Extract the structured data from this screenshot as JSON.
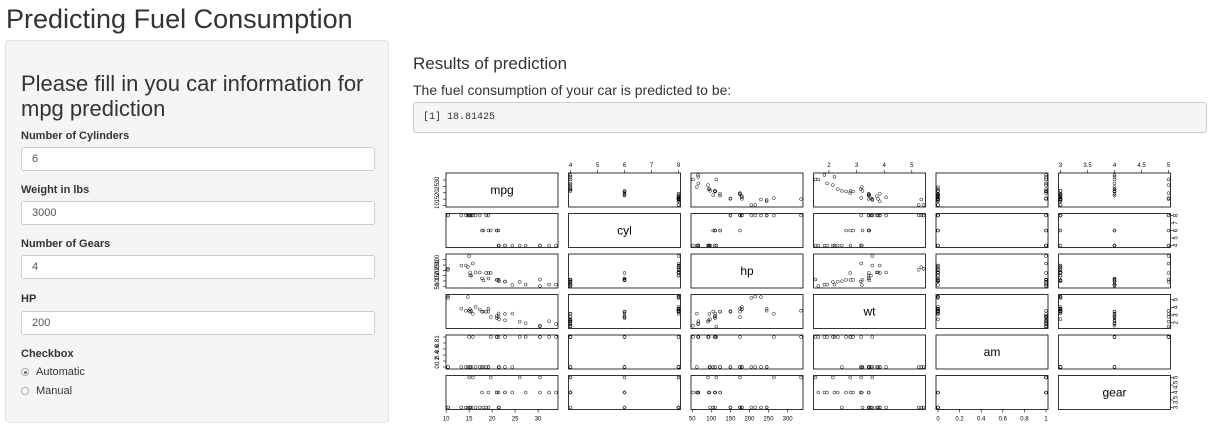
{
  "title": "Predicting Fuel Consumption",
  "sidebar": {
    "heading": "Please fill in you car information for mpg prediction",
    "fields": [
      {
        "label": "Number of Cylinders",
        "value": "6"
      },
      {
        "label": "Weight in lbs",
        "value": "3000"
      },
      {
        "label": "Number of Gears",
        "value": "4"
      },
      {
        "label": "HP",
        "value": "200"
      }
    ],
    "checkbox": {
      "label": "Checkbox",
      "options": [
        "Automatic",
        "Manual"
      ],
      "selected": "Automatic"
    }
  },
  "main": {
    "results_title": "Results of prediction",
    "results_subtitle": "The fuel consumption of your car is predicted to be:",
    "prediction": "[1] 18.81425"
  },
  "chart_data": {
    "type": "scatter",
    "variables": [
      "mpg",
      "cyl",
      "hp",
      "wt",
      "am",
      "gear"
    ],
    "ranges": {
      "mpg": [
        10.4,
        33.9
      ],
      "cyl": [
        4,
        8
      ],
      "hp": [
        52,
        335
      ],
      "wt": [
        1.513,
        5.424
      ],
      "am": [
        0,
        1
      ],
      "gear": [
        3,
        5
      ]
    },
    "ticks": {
      "mpg": [
        10,
        15,
        20,
        25,
        30
      ],
      "cyl": [
        4,
        5,
        6,
        7,
        8
      ],
      "hp": [
        50,
        100,
        150,
        200,
        250,
        300
      ],
      "wt": [
        2,
        3,
        4,
        5
      ],
      "am": [
        0.0,
        0.2,
        0.4,
        0.6,
        0.8,
        1.0
      ],
      "gear": [
        3.0,
        3.5,
        4.0,
        4.5,
        5.0
      ]
    },
    "points": {
      "mpg": [
        21,
        21,
        22.8,
        21.4,
        18.7,
        18.1,
        14.3,
        24.4,
        22.8,
        19.2,
        17.8,
        16.4,
        17.3,
        15.2,
        10.4,
        10.4,
        14.7,
        32.4,
        30.4,
        33.9,
        21.5,
        15.5,
        15.2,
        13.3,
        19.2,
        27.3,
        26,
        30.4,
        15.8,
        19.7,
        15,
        21.4
      ],
      "cyl": [
        6,
        6,
        4,
        6,
        8,
        6,
        8,
        4,
        4,
        6,
        6,
        8,
        8,
        8,
        8,
        8,
        8,
        4,
        4,
        4,
        4,
        8,
        8,
        8,
        8,
        4,
        4,
        4,
        8,
        6,
        8,
        4
      ],
      "hp": [
        110,
        110,
        93,
        110,
        175,
        105,
        245,
        62,
        95,
        123,
        123,
        180,
        180,
        180,
        205,
        215,
        230,
        66,
        52,
        65,
        97,
        150,
        150,
        245,
        175,
        66,
        91,
        113,
        264,
        175,
        335,
        109
      ],
      "wt": [
        2.62,
        2.875,
        2.32,
        3.215,
        3.44,
        3.46,
        3.57,
        3.19,
        3.15,
        3.44,
        3.44,
        4.07,
        3.73,
        3.78,
        5.25,
        5.424,
        5.345,
        2.2,
        1.615,
        1.835,
        2.465,
        3.52,
        3.435,
        3.84,
        3.845,
        1.935,
        2.14,
        1.513,
        3.17,
        2.77,
        3.57,
        2.78
      ],
      "am": [
        1,
        1,
        1,
        0,
        0,
        0,
        0,
        0,
        0,
        0,
        0,
        0,
        0,
        0,
        0,
        0,
        0,
        1,
        1,
        1,
        0,
        0,
        0,
        0,
        0,
        1,
        1,
        1,
        1,
        1,
        1,
        1
      ],
      "gear": [
        4,
        4,
        4,
        3,
        3,
        3,
        3,
        4,
        4,
        4,
        4,
        3,
        3,
        3,
        3,
        3,
        3,
        4,
        4,
        4,
        3,
        3,
        3,
        3,
        3,
        4,
        5,
        5,
        5,
        5,
        5,
        4
      ]
    }
  }
}
